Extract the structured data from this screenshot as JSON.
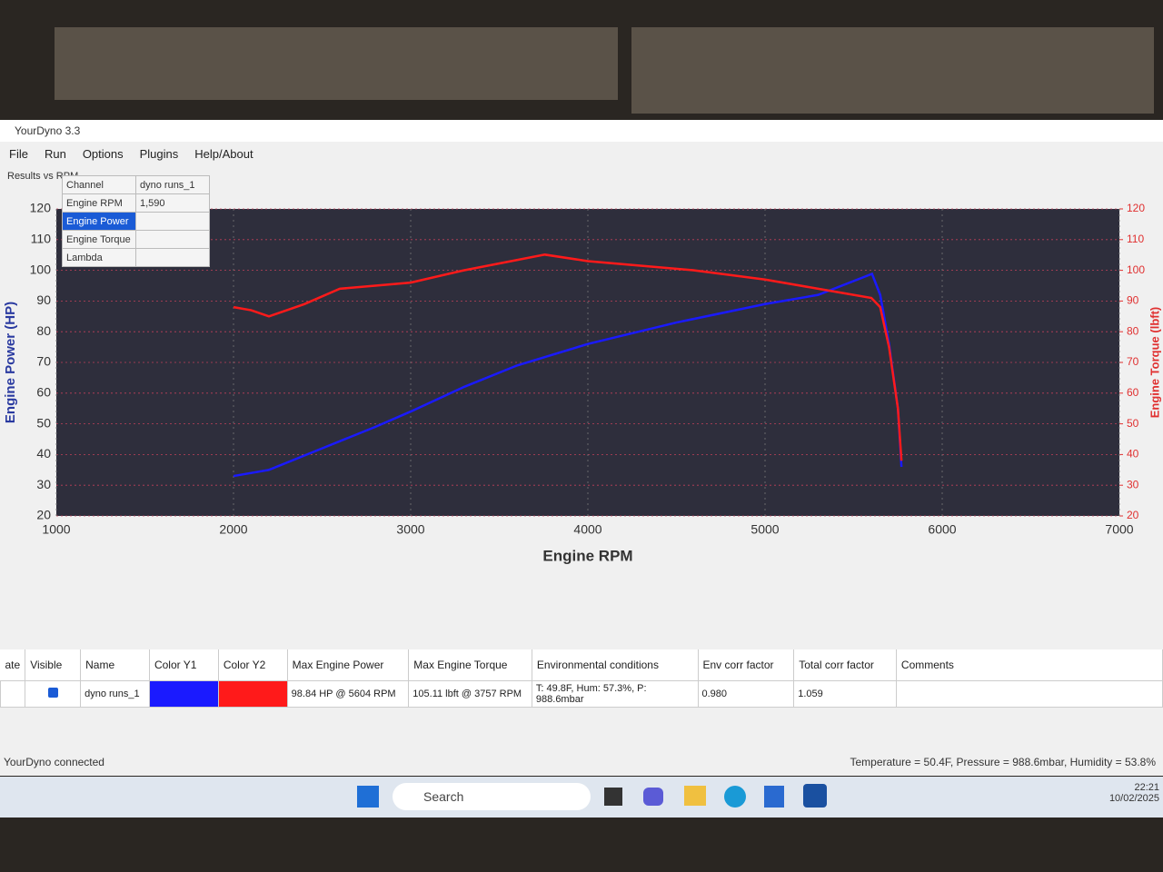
{
  "window": {
    "title": "YourDyno 3.3",
    "menu": [
      "File",
      "Run",
      "Options",
      "Plugins",
      "Help/About"
    ],
    "tab": "Results vs RPM"
  },
  "chart_data": {
    "type": "line",
    "xlabel": "Engine RPM",
    "ylabel": "Engine Power (HP)",
    "y2label": "Engine Torque (lbft)",
    "xlim": [
      1000,
      7000
    ],
    "xticks": [
      1000,
      2000,
      3000,
      4000,
      5000,
      6000,
      7000
    ],
    "ylim": [
      20,
      120
    ],
    "yticks": [
      20,
      30,
      40,
      50,
      60,
      70,
      80,
      90,
      100,
      110,
      120
    ],
    "y2lim": [
      20,
      120
    ],
    "y2ticks": [
      20,
      30,
      40,
      50,
      60,
      70,
      80,
      90,
      100,
      110,
      120
    ],
    "grid": true,
    "series": [
      {
        "name": "Engine Power",
        "color": "#1a1aff",
        "axis": "y",
        "x": [
          2000,
          2200,
          2500,
          2800,
          3000,
          3300,
          3600,
          4000,
          4500,
          5000,
          5300,
          5604,
          5650,
          5700,
          5750,
          5770
        ],
        "values": [
          33,
          35,
          42,
          49,
          54,
          62,
          69,
          76,
          83,
          89,
          92,
          98.84,
          92,
          76,
          55,
          36
        ]
      },
      {
        "name": "Engine Torque",
        "color": "#ff1a1a",
        "axis": "y2",
        "x": [
          2000,
          2100,
          2200,
          2400,
          2600,
          2800,
          3000,
          3300,
          3757,
          4000,
          4200,
          4600,
          5000,
          5300,
          5600,
          5650,
          5700,
          5750,
          5770
        ],
        "values": [
          88,
          87,
          85,
          89,
          94,
          95,
          96,
          100,
          105.11,
          103,
          102,
          100,
          97,
          94,
          91,
          88,
          75,
          55,
          38
        ]
      }
    ]
  },
  "channel_table": {
    "header": [
      "Channel",
      "dyno runs_1"
    ],
    "rows": [
      {
        "channel": "Engine RPM",
        "value": "1,590"
      },
      {
        "channel": "Engine Power"
      },
      {
        "channel": "Engine Torque"
      },
      {
        "channel": "Lambda"
      }
    ]
  },
  "runs_table": {
    "columns": [
      "ate",
      "Visible",
      "Name",
      "Color Y1",
      "Color Y2",
      "Max Engine Power",
      "Max Engine Torque",
      "Environmental conditions",
      "Env corr factor",
      "Total corr factor",
      "Comments"
    ],
    "rows": [
      {
        "name": "dyno runs_1",
        "max_power": "98.84 HP @ 5604 RPM",
        "max_torque": "105.11 lbft @ 3757 RPM",
        "env": "T: 49.8F, Hum: 57.3%, P: 988.6mbar",
        "env_corr": "0.980",
        "total_corr": "1.059"
      }
    ]
  },
  "status": {
    "left": "YourDyno connected",
    "right": "Temperature = 50.4F, Pressure = 988.6mbar, Humidity = 53.8%"
  },
  "taskbar": {
    "search": "Search",
    "time": "22:21",
    "date": "10/02/2025"
  }
}
